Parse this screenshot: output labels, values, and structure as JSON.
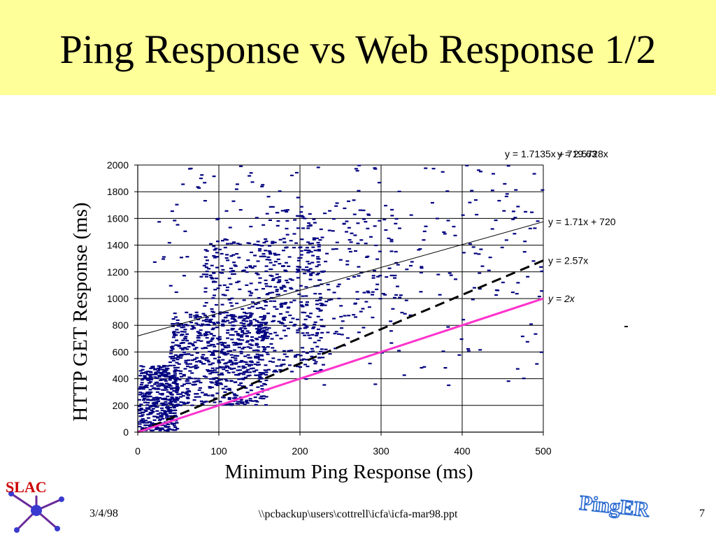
{
  "slide": {
    "title": "Ping Response vs Web Response 1/2",
    "footer_date": "3/4/98",
    "footer_path": "\\\\pcbackup\\users\\cottrell\\icfa\\icfa-mar98.ppt",
    "page_number": "7",
    "logo_left": "SLAC",
    "logo_right": "PingER"
  },
  "chart_data": {
    "type": "scatter",
    "xlabel": "Minimum Ping Response (ms)",
    "ylabel": "HTTP GET Response (ms)",
    "xlim": [
      0,
      500
    ],
    "ylim": [
      0,
      2000
    ],
    "xticks": [
      "0",
      "100",
      "200",
      "300",
      "400",
      "500"
    ],
    "yticks": [
      "0",
      "200",
      "400",
      "600",
      "800",
      "1000",
      "1200",
      "1400",
      "1600",
      "1800",
      "2000"
    ],
    "grid": true,
    "colors": {
      "points": "#000080",
      "fit_line": "#000000",
      "slope_line": "#000000",
      "ref_line": "#ff33cc"
    },
    "lines": [
      {
        "label": "y = 1.71x + 720",
        "slope": 1.71,
        "intercept": 720,
        "style": "solid"
      },
      {
        "label": "y = 2.57x",
        "slope": 2.57,
        "intercept": 0,
        "style": "dashed"
      },
      {
        "label": "y = 2x",
        "slope": 2,
        "intercept": 0,
        "style": "magenta"
      }
    ],
    "overlapping_equations": [
      "y = 1.7135x + 719.63",
      "y = 2.5728x"
    ],
    "point_clusters": [
      {
        "x_range": [
          2,
          50
        ],
        "y_range": [
          10,
          500
        ],
        "count": 420
      },
      {
        "x_range": [
          40,
          160
        ],
        "y_range": [
          200,
          900
        ],
        "count": 650
      },
      {
        "x_range": [
          80,
          230
        ],
        "y_range": [
          450,
          1450
        ],
        "count": 450
      },
      {
        "x_range": [
          150,
          330
        ],
        "y_range": [
          700,
          1700
        ],
        "count": 170
      },
      {
        "x_range": [
          20,
          500
        ],
        "y_range": [
          1000,
          2000
        ],
        "count": 190
      },
      {
        "x_range": [
          200,
          500
        ],
        "y_range": [
          350,
          1600
        ],
        "count": 90
      }
    ]
  }
}
